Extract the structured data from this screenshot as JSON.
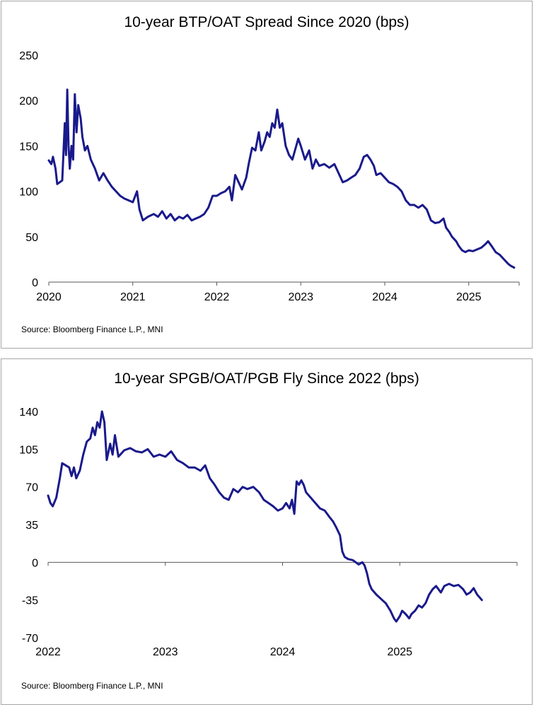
{
  "colors": {
    "series": "#1a1a8c",
    "axis": "#595959"
  },
  "chart_data": [
    {
      "type": "line",
      "title": "10-year BTP/OAT Spread Since 2020 (bps)",
      "source": "Source: Bloomberg Finance L.P., MNI",
      "xlabel": "",
      "ylabel": "",
      "xlim": [
        2020.0,
        2025.6
      ],
      "ylim": [
        0,
        250
      ],
      "y_ticks": [
        "0",
        "50",
        "100",
        "150",
        "200",
        "250"
      ],
      "x_ticks": [
        "2020",
        "2021",
        "2022",
        "2023",
        "2024",
        "2025"
      ],
      "series": [
        {
          "name": "10-year BTP/OAT Spread",
          "points": [
            [
              2020.0,
              134
            ],
            [
              2020.03,
              130
            ],
            [
              2020.05,
              138
            ],
            [
              2020.08,
              125
            ],
            [
              2020.1,
              108
            ],
            [
              2020.13,
              110
            ],
            [
              2020.16,
              112
            ],
            [
              2020.19,
              175
            ],
            [
              2020.205,
              140
            ],
            [
              2020.22,
              212
            ],
            [
              2020.235,
              150
            ],
            [
              2020.25,
              125
            ],
            [
              2020.27,
              150
            ],
            [
              2020.29,
              135
            ],
            [
              2020.31,
              207
            ],
            [
              2020.33,
              165
            ],
            [
              2020.35,
              195
            ],
            [
              2020.38,
              180
            ],
            [
              2020.4,
              160
            ],
            [
              2020.43,
              145
            ],
            [
              2020.46,
              150
            ],
            [
              2020.5,
              135
            ],
            [
              2020.55,
              125
            ],
            [
              2020.6,
              112
            ],
            [
              2020.65,
              120
            ],
            [
              2020.7,
              112
            ],
            [
              2020.75,
              105
            ],
            [
              2020.8,
              100
            ],
            [
              2020.85,
              95
            ],
            [
              2020.9,
              92
            ],
            [
              2020.95,
              90
            ],
            [
              2021.0,
              88
            ],
            [
              2021.05,
              100
            ],
            [
              2021.08,
              80
            ],
            [
              2021.12,
              68
            ],
            [
              2021.18,
              72
            ],
            [
              2021.25,
              75
            ],
            [
              2021.3,
              72
            ],
            [
              2021.35,
              78
            ],
            [
              2021.4,
              70
            ],
            [
              2021.45,
              75
            ],
            [
              2021.5,
              68
            ],
            [
              2021.55,
              72
            ],
            [
              2021.6,
              70
            ],
            [
              2021.65,
              74
            ],
            [
              2021.7,
              68
            ],
            [
              2021.75,
              70
            ],
            [
              2021.8,
              72
            ],
            [
              2021.85,
              75
            ],
            [
              2021.9,
              82
            ],
            [
              2021.95,
              95
            ],
            [
              2022.0,
              95
            ],
            [
              2022.05,
              98
            ],
            [
              2022.1,
              100
            ],
            [
              2022.15,
              105
            ],
            [
              2022.18,
              90
            ],
            [
              2022.22,
              118
            ],
            [
              2022.26,
              110
            ],
            [
              2022.3,
              102
            ],
            [
              2022.35,
              115
            ],
            [
              2022.38,
              130
            ],
            [
              2022.42,
              148
            ],
            [
              2022.46,
              145
            ],
            [
              2022.5,
              165
            ],
            [
              2022.53,
              145
            ],
            [
              2022.57,
              155
            ],
            [
              2022.6,
              165
            ],
            [
              2022.63,
              160
            ],
            [
              2022.66,
              175
            ],
            [
              2022.69,
              170
            ],
            [
              2022.72,
              190
            ],
            [
              2022.75,
              170
            ],
            [
              2022.78,
              175
            ],
            [
              2022.82,
              150
            ],
            [
              2022.86,
              140
            ],
            [
              2022.9,
              135
            ],
            [
              2022.94,
              148
            ],
            [
              2022.97,
              158
            ],
            [
              2023.0,
              150
            ],
            [
              2023.05,
              135
            ],
            [
              2023.1,
              145
            ],
            [
              2023.14,
              125
            ],
            [
              2023.18,
              135
            ],
            [
              2023.22,
              128
            ],
            [
              2023.28,
              130
            ],
            [
              2023.34,
              126
            ],
            [
              2023.4,
              130
            ],
            [
              2023.45,
              120
            ],
            [
              2023.5,
              110
            ],
            [
              2023.55,
              112
            ],
            [
              2023.6,
              115
            ],
            [
              2023.65,
              118
            ],
            [
              2023.7,
              125
            ],
            [
              2023.75,
              138
            ],
            [
              2023.79,
              140
            ],
            [
              2023.83,
              135
            ],
            [
              2023.87,
              128
            ],
            [
              2023.9,
              118
            ],
            [
              2023.95,
              120
            ],
            [
              2024.0,
              115
            ],
            [
              2024.05,
              110
            ],
            [
              2024.1,
              108
            ],
            [
              2024.15,
              105
            ],
            [
              2024.2,
              100
            ],
            [
              2024.25,
              90
            ],
            [
              2024.3,
              85
            ],
            [
              2024.35,
              85
            ],
            [
              2024.4,
              82
            ],
            [
              2024.45,
              85
            ],
            [
              2024.5,
              80
            ],
            [
              2024.55,
              68
            ],
            [
              2024.6,
              65
            ],
            [
              2024.65,
              66
            ],
            [
              2024.7,
              70
            ],
            [
              2024.73,
              60
            ],
            [
              2024.77,
              55
            ],
            [
              2024.8,
              50
            ],
            [
              2024.85,
              45
            ],
            [
              2024.88,
              40
            ],
            [
              2024.92,
              35
            ],
            [
              2024.96,
              33
            ],
            [
              2025.0,
              35
            ],
            [
              2025.05,
              34
            ],
            [
              2025.1,
              36
            ],
            [
              2025.15,
              38
            ],
            [
              2025.2,
              42
            ],
            [
              2025.23,
              45
            ],
            [
              2025.27,
              40
            ],
            [
              2025.32,
              33
            ],
            [
              2025.37,
              30
            ],
            [
              2025.42,
              25
            ],
            [
              2025.47,
              20
            ],
            [
              2025.5,
              18
            ],
            [
              2025.54,
              16
            ]
          ]
        }
      ]
    },
    {
      "type": "line",
      "title": "10-year SPGB/OAT/PGB Fly Since 2022 (bps)",
      "source": "Source: Bloomberg Finance L.P., MNI",
      "xlabel": "",
      "ylabel": "",
      "xlim": [
        2022.0,
        2026.0
      ],
      "ylim": [
        -70,
        140
      ],
      "y_ticks": [
        "140",
        "105",
        "70",
        "35",
        "0",
        "-35",
        "-70"
      ],
      "x_ticks": [
        "2022",
        "2023",
        "2024",
        "2025"
      ],
      "series": [
        {
          "name": "10-year SPGB/OAT/PGB Fly",
          "points": [
            [
              2022.0,
              62
            ],
            [
              2022.02,
              55
            ],
            [
              2022.04,
              52
            ],
            [
              2022.07,
              60
            ],
            [
              2022.1,
              78
            ],
            [
              2022.12,
              92
            ],
            [
              2022.15,
              90
            ],
            [
              2022.18,
              88
            ],
            [
              2022.2,
              80
            ],
            [
              2022.22,
              88
            ],
            [
              2022.24,
              78
            ],
            [
              2022.27,
              85
            ],
            [
              2022.3,
              100
            ],
            [
              2022.33,
              112
            ],
            [
              2022.36,
              115
            ],
            [
              2022.38,
              125
            ],
            [
              2022.4,
              118
            ],
            [
              2022.42,
              130
            ],
            [
              2022.44,
              125
            ],
            [
              2022.46,
              140
            ],
            [
              2022.48,
              130
            ],
            [
              2022.5,
              95
            ],
            [
              2022.53,
              110
            ],
            [
              2022.55,
              100
            ],
            [
              2022.57,
              118
            ],
            [
              2022.6,
              98
            ],
            [
              2022.65,
              104
            ],
            [
              2022.7,
              106
            ],
            [
              2022.75,
              103
            ],
            [
              2022.8,
              102
            ],
            [
              2022.85,
              105
            ],
            [
              2022.9,
              98
            ],
            [
              2022.95,
              100
            ],
            [
              2023.0,
              98
            ],
            [
              2023.05,
              103
            ],
            [
              2023.1,
              95
            ],
            [
              2023.15,
              92
            ],
            [
              2023.2,
              88
            ],
            [
              2023.25,
              88
            ],
            [
              2023.3,
              85
            ],
            [
              2023.34,
              90
            ],
            [
              2023.38,
              78
            ],
            [
              2023.42,
              72
            ],
            [
              2023.46,
              65
            ],
            [
              2023.5,
              60
            ],
            [
              2023.54,
              58
            ],
            [
              2023.58,
              68
            ],
            [
              2023.62,
              65
            ],
            [
              2023.66,
              70
            ],
            [
              2023.7,
              68
            ],
            [
              2023.75,
              70
            ],
            [
              2023.8,
              65
            ],
            [
              2023.84,
              58
            ],
            [
              2023.88,
              55
            ],
            [
              2023.92,
              52
            ],
            [
              2023.96,
              48
            ],
            [
              2024.0,
              50
            ],
            [
              2024.03,
              55
            ],
            [
              2024.06,
              50
            ],
            [
              2024.08,
              58
            ],
            [
              2024.1,
              45
            ],
            [
              2024.12,
              75
            ],
            [
              2024.14,
              72
            ],
            [
              2024.16,
              76
            ],
            [
              2024.18,
              72
            ],
            [
              2024.2,
              65
            ],
            [
              2024.24,
              60
            ],
            [
              2024.28,
              55
            ],
            [
              2024.32,
              50
            ],
            [
              2024.36,
              48
            ],
            [
              2024.4,
              42
            ],
            [
              2024.43,
              38
            ],
            [
              2024.46,
              32
            ],
            [
              2024.49,
              25
            ],
            [
              2024.51,
              10
            ],
            [
              2024.53,
              5
            ],
            [
              2024.56,
              3
            ],
            [
              2024.6,
              2
            ],
            [
              2024.65,
              -2
            ],
            [
              2024.68,
              0
            ],
            [
              2024.7,
              -3
            ],
            [
              2024.72,
              -10
            ],
            [
              2024.74,
              -20
            ],
            [
              2024.76,
              -25
            ],
            [
              2024.8,
              -30
            ],
            [
              2024.85,
              -35
            ],
            [
              2024.88,
              -38
            ],
            [
              2024.92,
              -45
            ],
            [
              2024.95,
              -52
            ],
            [
              2024.97,
              -55
            ],
            [
              2025.0,
              -50
            ],
            [
              2025.02,
              -45
            ],
            [
              2025.05,
              -48
            ],
            [
              2025.08,
              -52
            ],
            [
              2025.1,
              -48
            ],
            [
              2025.13,
              -45
            ],
            [
              2025.16,
              -40
            ],
            [
              2025.19,
              -42
            ],
            [
              2025.22,
              -38
            ],
            [
              2025.25,
              -30
            ],
            [
              2025.28,
              -25
            ],
            [
              2025.31,
              -22
            ],
            [
              2025.35,
              -28
            ],
            [
              2025.38,
              -22
            ],
            [
              2025.42,
              -20
            ],
            [
              2025.46,
              -22
            ],
            [
              2025.5,
              -21
            ],
            [
              2025.54,
              -25
            ],
            [
              2025.57,
              -30
            ],
            [
              2025.6,
              -28
            ],
            [
              2025.63,
              -24
            ],
            [
              2025.66,
              -30
            ],
            [
              2025.7,
              -35
            ]
          ]
        }
      ]
    }
  ]
}
